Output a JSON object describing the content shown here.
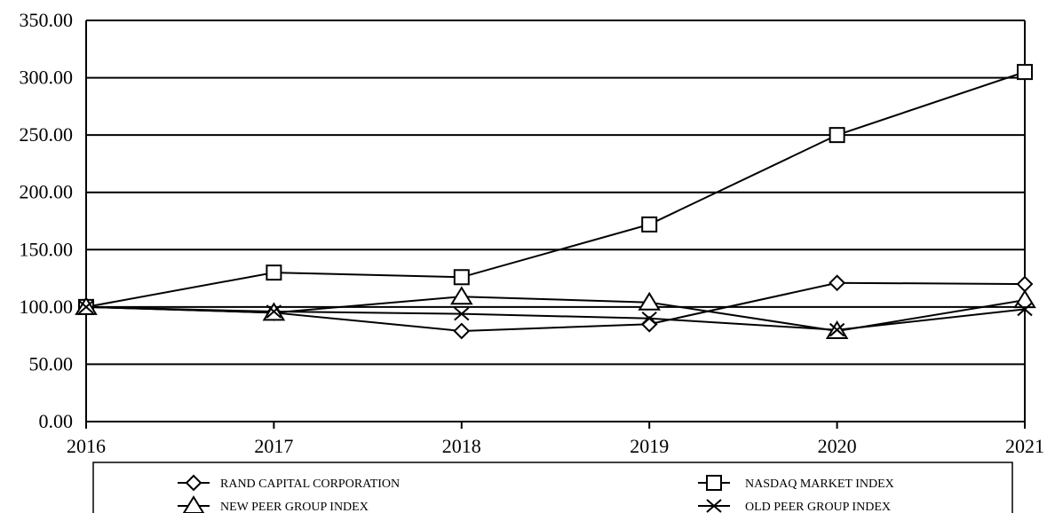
{
  "chart_data": {
    "type": "line",
    "title": "",
    "xlabel": "",
    "ylabel": "",
    "categories": [
      "2016",
      "2017",
      "2018",
      "2019",
      "2020",
      "2021"
    ],
    "ylim": [
      0,
      350
    ],
    "yticks": [
      "0.00",
      "50.00",
      "100.00",
      "150.00",
      "200.00",
      "250.00",
      "300.00",
      "350.00"
    ],
    "grid": "horizontal",
    "legend_position": "bottom",
    "series": [
      {
        "name": "RAND CAPITAL CORPORATION",
        "marker": "diamond",
        "values": [
          100,
          95,
          79,
          85,
          121,
          120
        ]
      },
      {
        "name": "NASDAQ MARKET INDEX",
        "marker": "square",
        "values": [
          100,
          130,
          126,
          172,
          250,
          305
        ]
      },
      {
        "name": "NEW PEER GROUP INDEX",
        "marker": "triangle",
        "values": [
          100,
          95,
          109,
          104,
          79,
          106
        ]
      },
      {
        "name": "OLD PEER GROUP INDEX",
        "marker": "x",
        "values": [
          100,
          96,
          94,
          90,
          80,
          98
        ]
      }
    ]
  }
}
